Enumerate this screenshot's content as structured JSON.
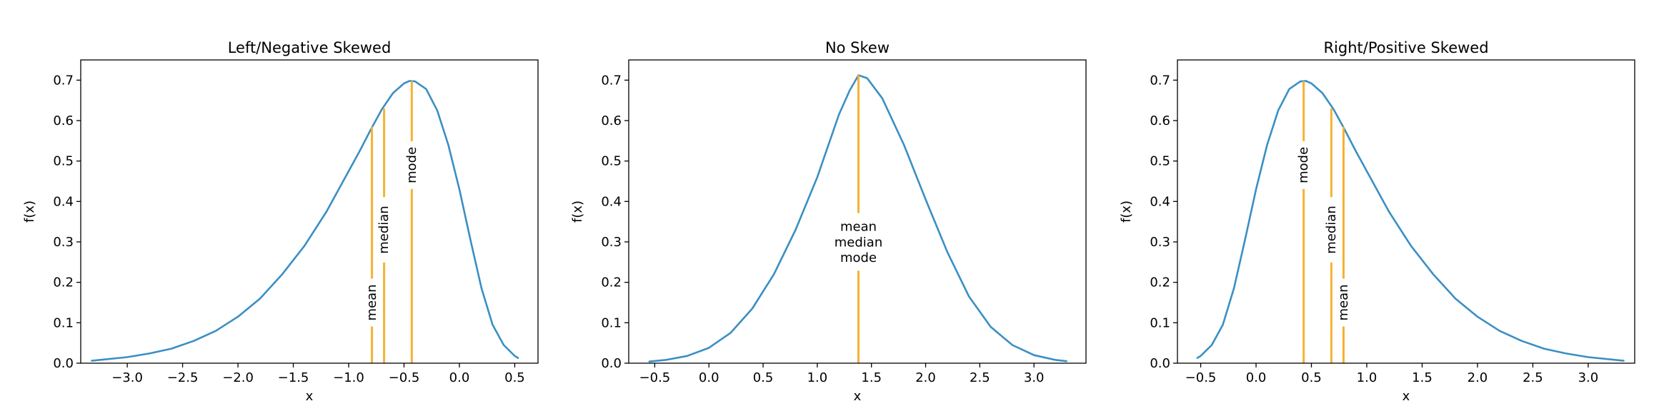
{
  "colors": {
    "curve": "#3a8fc4",
    "marker": "#f5b233",
    "axes": "#000000",
    "background": "#ffffff"
  },
  "chart_data": [
    {
      "type": "line",
      "title": "Left/Negative Skewed",
      "xlabel": "x",
      "ylabel": "f(x)",
      "xlim": [
        -3.42,
        0.71
      ],
      "ylim": [
        0,
        0.75
      ],
      "xticks": [
        -3.0,
        -2.5,
        -2.0,
        -1.5,
        -1.0,
        -0.5,
        0.0,
        0.5
      ],
      "xtick_labels": [
        "−3.0",
        "−2.5",
        "−2.0",
        "−1.5",
        "−1.0",
        "−0.5",
        "0.0",
        "0.5"
      ],
      "yticks": [
        0.0,
        0.1,
        0.2,
        0.3,
        0.4,
        0.5,
        0.6,
        0.7
      ],
      "ytick_labels": [
        "0.0",
        "0.1",
        "0.2",
        "0.3",
        "0.4",
        "0.5",
        "0.6",
        "0.7"
      ],
      "grid": false,
      "series": [
        {
          "x": [
            -3.32,
            -3.0,
            -2.8,
            -2.6,
            -2.4,
            -2.2,
            -2.0,
            -1.8,
            -1.6,
            -1.4,
            -1.2,
            -1.0,
            -0.9,
            -0.8,
            -0.7,
            -0.6,
            -0.5,
            -0.45,
            -0.4,
            -0.3,
            -0.2,
            -0.1,
            0.0,
            0.1,
            0.2,
            0.3,
            0.4,
            0.5,
            0.53
          ],
          "y": [
            0.006,
            0.015,
            0.024,
            0.036,
            0.055,
            0.08,
            0.115,
            0.16,
            0.22,
            0.29,
            0.375,
            0.475,
            0.525,
            0.578,
            0.628,
            0.668,
            0.692,
            0.698,
            0.697,
            0.678,
            0.625,
            0.54,
            0.43,
            0.305,
            0.185,
            0.095,
            0.045,
            0.018,
            0.013
          ]
        }
      ],
      "markers": [
        {
          "label": "mean",
          "x": -0.79,
          "y": 0.585,
          "text_y": 0.15
        },
        {
          "label": "median",
          "x": -0.68,
          "y": 0.63,
          "text_y": 0.33
        },
        {
          "label": "mode",
          "x": -0.43,
          "y": 0.698,
          "text_y": 0.49
        }
      ]
    },
    {
      "type": "line",
      "title": "No Skew",
      "xlabel": "x",
      "ylabel": "f(x)",
      "xlim": [
        -0.74,
        3.48
      ],
      "ylim": [
        0,
        0.75
      ],
      "xticks": [
        -0.5,
        0.0,
        0.5,
        1.0,
        1.5,
        2.0,
        2.5,
        3.0
      ],
      "xtick_labels": [
        "−0.5",
        "0.0",
        "0.5",
        "1.0",
        "1.5",
        "2.0",
        "2.5",
        "3.0"
      ],
      "yticks": [
        0.0,
        0.1,
        0.2,
        0.3,
        0.4,
        0.5,
        0.6,
        0.7
      ],
      "ytick_labels": [
        "0.0",
        "0.1",
        "0.2",
        "0.3",
        "0.4",
        "0.5",
        "0.6",
        "0.7"
      ],
      "grid": false,
      "series": [
        {
          "x": [
            -0.55,
            -0.4,
            -0.2,
            0.0,
            0.2,
            0.4,
            0.6,
            0.8,
            1.0,
            1.2,
            1.3,
            1.38,
            1.46,
            1.6,
            1.8,
            2.0,
            2.2,
            2.4,
            2.6,
            2.8,
            3.0,
            3.2,
            3.3
          ],
          "y": [
            0.004,
            0.008,
            0.018,
            0.038,
            0.075,
            0.135,
            0.22,
            0.33,
            0.46,
            0.615,
            0.675,
            0.712,
            0.705,
            0.655,
            0.54,
            0.405,
            0.275,
            0.165,
            0.09,
            0.045,
            0.02,
            0.008,
            0.005
          ]
        }
      ],
      "markers": [
        {
          "label": "mean\nmedian\nmode",
          "x": 1.38,
          "y": 0.712,
          "text_y": 0.3
        }
      ]
    },
    {
      "type": "line",
      "title": "Right/Positive Skewed",
      "xlabel": "x",
      "ylabel": "f(x)",
      "xlim": [
        -0.71,
        3.42
      ],
      "ylim": [
        0,
        0.75
      ],
      "xticks": [
        -0.5,
        0.0,
        0.5,
        1.0,
        1.5,
        2.0,
        2.5,
        3.0
      ],
      "xtick_labels": [
        "−0.5",
        "0.0",
        "0.5",
        "1.0",
        "1.5",
        "2.0",
        "2.5",
        "3.0"
      ],
      "yticks": [
        0.0,
        0.1,
        0.2,
        0.3,
        0.4,
        0.5,
        0.6,
        0.7
      ],
      "ytick_labels": [
        "0.0",
        "0.1",
        "0.2",
        "0.3",
        "0.4",
        "0.5",
        "0.6",
        "0.7"
      ],
      "grid": false,
      "series": [
        {
          "x": [
            -0.53,
            -0.5,
            -0.4,
            -0.3,
            -0.2,
            -0.1,
            0.0,
            0.1,
            0.2,
            0.3,
            0.4,
            0.45,
            0.5,
            0.6,
            0.7,
            0.8,
            0.9,
            1.0,
            1.2,
            1.4,
            1.6,
            1.8,
            2.0,
            2.2,
            2.4,
            2.6,
            2.8,
            3.0,
            3.32
          ],
          "y": [
            0.013,
            0.018,
            0.045,
            0.095,
            0.185,
            0.305,
            0.43,
            0.54,
            0.625,
            0.678,
            0.697,
            0.698,
            0.692,
            0.668,
            0.628,
            0.578,
            0.525,
            0.475,
            0.375,
            0.29,
            0.22,
            0.16,
            0.115,
            0.08,
            0.055,
            0.036,
            0.024,
            0.015,
            0.006
          ]
        }
      ],
      "markers": [
        {
          "label": "mode",
          "x": 0.43,
          "y": 0.698,
          "text_y": 0.49
        },
        {
          "label": "median",
          "x": 0.68,
          "y": 0.63,
          "text_y": 0.33
        },
        {
          "label": "mean",
          "x": 0.79,
          "y": 0.585,
          "text_y": 0.15
        }
      ]
    }
  ]
}
